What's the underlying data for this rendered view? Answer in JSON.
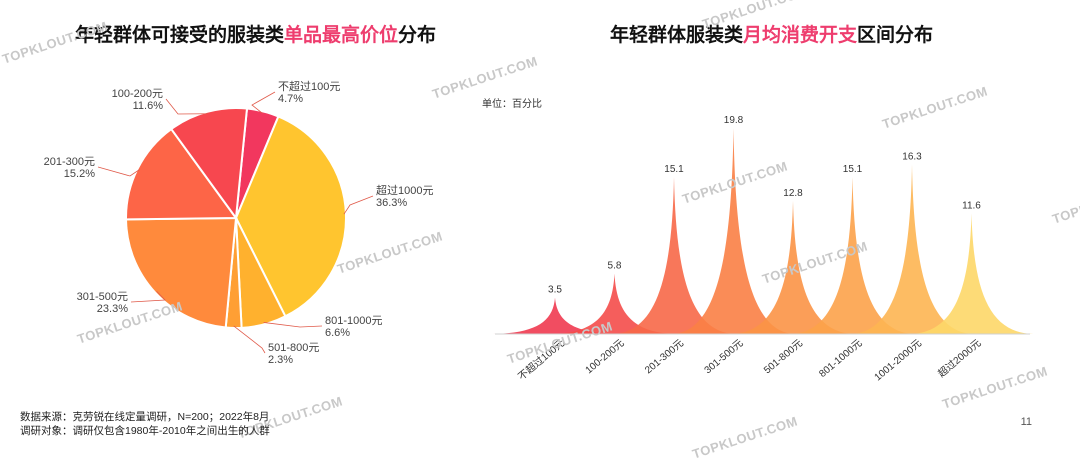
{
  "left_title": {
    "prefix": "年轻群体可接受的服装类",
    "highlight": "单品最高价位",
    "suffix": "分布"
  },
  "right_title": {
    "prefix": "年轻群体服装类",
    "highlight": "月均消费开支",
    "suffix": "区间分布"
  },
  "unit": "单位：百分比",
  "footnote1": "数据来源：克劳锐在线定量调研，N=200；2022年8月",
  "footnote2": "调研对象：调研仅包含1980年-2010年之间出生的人群",
  "page_number": "11",
  "watermark": "TOPKLOUT.COM",
  "colors": {
    "highlight": "#ee3d6e",
    "label_line": "#e05a4a"
  },
  "chart_data": [
    {
      "type": "pie",
      "title": "年轻群体可接受的服装类单品最高价位分布",
      "slices": [
        {
          "label": "不超过100元",
          "value": 4.7,
          "display": "4.7%",
          "color": "#f2375e"
        },
        {
          "label": "超过1000元",
          "value": 36.3,
          "display": "36.3%",
          "color": "#ffc52f"
        },
        {
          "label": "801-1000元",
          "value": 6.6,
          "display": "6.6%",
          "color": "#ffb12e"
        },
        {
          "label": "501-800元",
          "value": 2.3,
          "display": "2.3%",
          "color": "#ff9f34"
        },
        {
          "label": "301-500元",
          "value": 23.3,
          "display": "23.3%",
          "color": "#ff8a3c"
        },
        {
          "label": "201-300元",
          "value": 15.2,
          "display": "15.2%",
          "color": "#fd6547"
        },
        {
          "label": "100-200元",
          "value": 11.6,
          "display": "11.6%",
          "color": "#f7474f"
        }
      ]
    },
    {
      "type": "bar",
      "title": "年轻群体服装类月均消费开支区间分布",
      "categories": [
        "不超过100元",
        "100-200元",
        "201-300元",
        "301-500元",
        "501-800元",
        "801-1000元",
        "1001-2000元",
        "超过2000元"
      ],
      "values": [
        3.5,
        5.8,
        15.1,
        19.8,
        12.8,
        15.1,
        16.3,
        11.6
      ],
      "colors": [
        "#f03a50",
        "#f44c4a",
        "#f76848",
        "#fa7f45",
        "#fb9446",
        "#fca24a",
        "#fdb552",
        "#fdd768"
      ],
      "ylim": [
        0,
        20
      ],
      "unit": "单位：百分比"
    }
  ]
}
